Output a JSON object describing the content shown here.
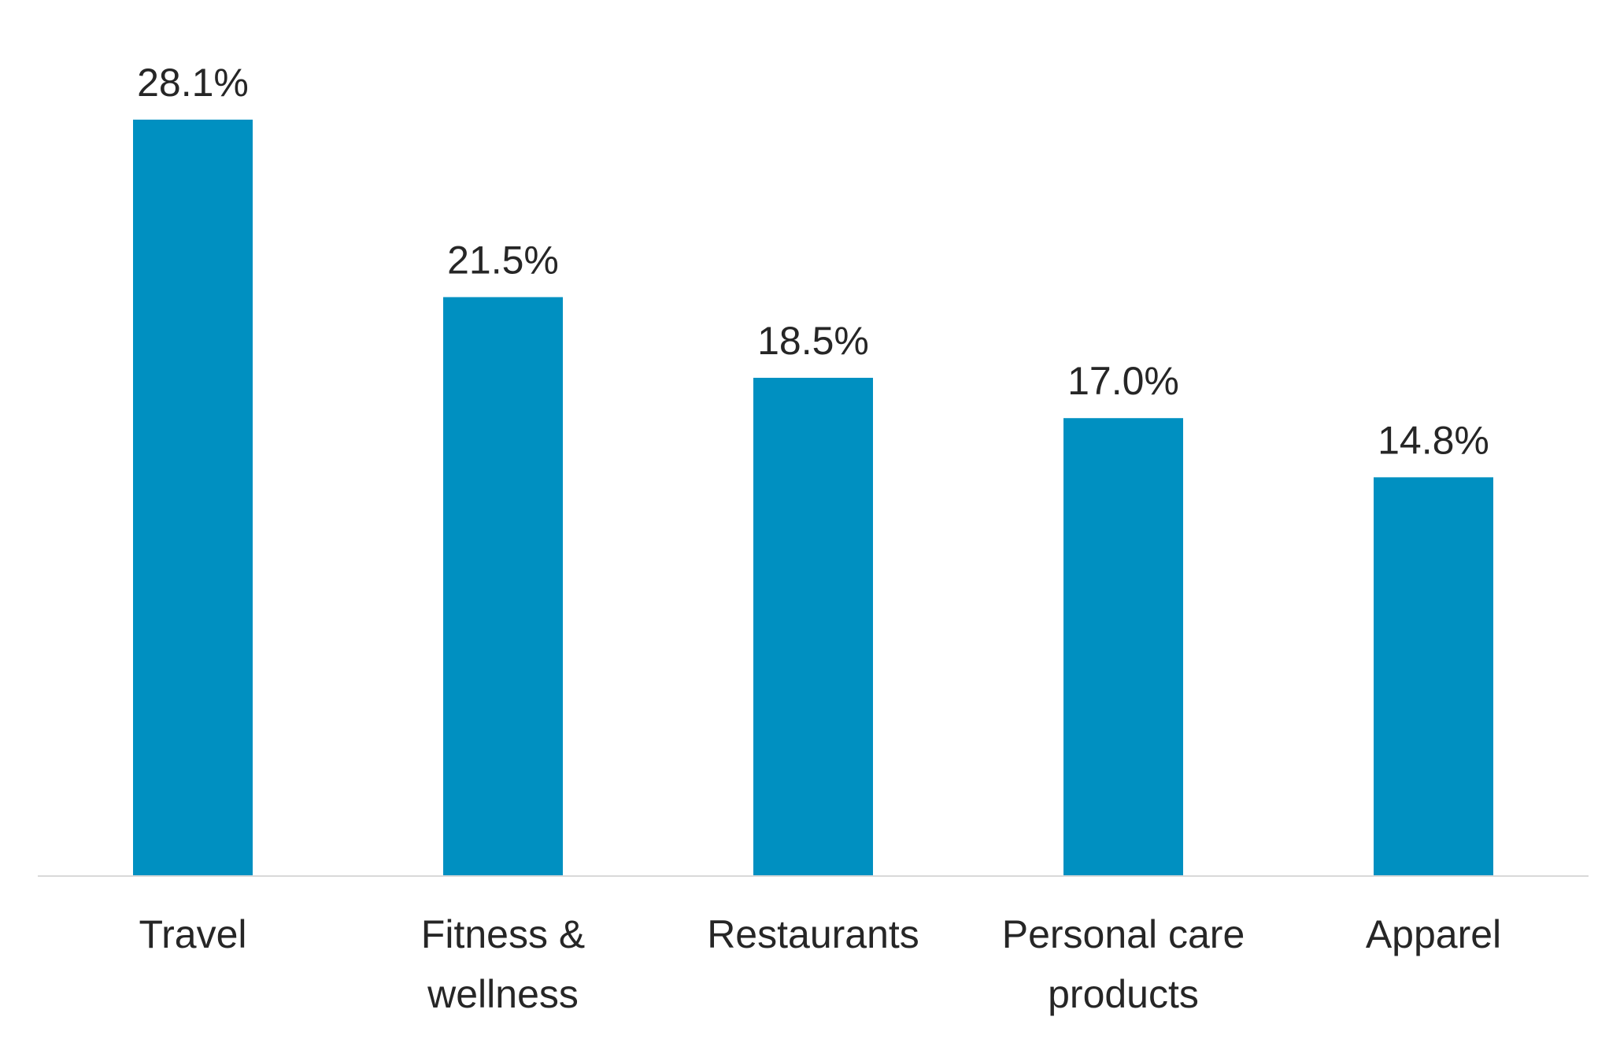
{
  "chart_data": {
    "type": "bar",
    "categories": [
      "Travel",
      "Fitness & wellness",
      "Restaurants",
      "Personal care products",
      "Apparel"
    ],
    "category_lines": [
      [
        "Travel"
      ],
      [
        "Fitness &",
        "wellness"
      ],
      [
        "Restaurants"
      ],
      [
        "Personal care",
        "products"
      ],
      [
        "Apparel"
      ]
    ],
    "values": [
      28.1,
      21.5,
      18.5,
      17.0,
      14.8
    ],
    "data_labels": [
      "28.1%",
      "21.5%",
      "18.5%",
      "17.0%",
      "14.8%"
    ],
    "ylim": [
      0,
      28.1
    ],
    "grid": false,
    "legend": "none",
    "colors": {
      "bar": "#0090C1",
      "axis": "#D9D9D9",
      "text": "#262626"
    }
  }
}
